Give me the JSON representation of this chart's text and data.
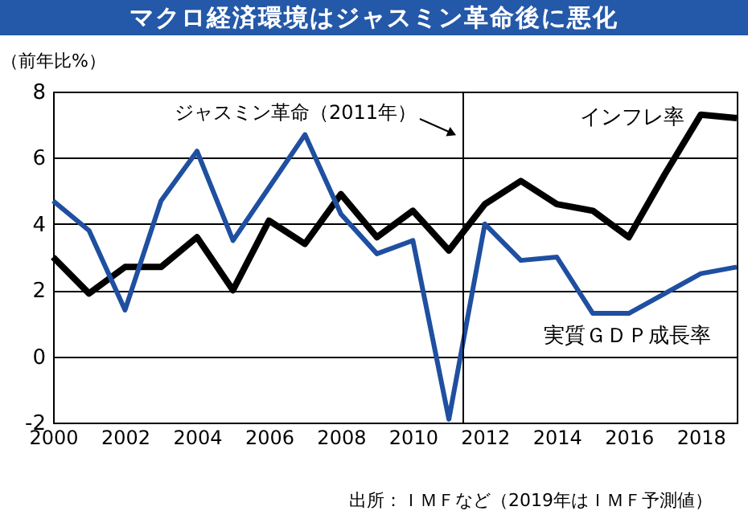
{
  "chart_data": {
    "type": "line",
    "title": "マクロ経済環境はジャスミン革命後に悪化",
    "ylabel": "（前年比%）",
    "x": [
      2000,
      2001,
      2002,
      2003,
      2004,
      2005,
      2006,
      2007,
      2008,
      2009,
      2010,
      2011,
      2012,
      2013,
      2014,
      2015,
      2016,
      2017,
      2018,
      2019
    ],
    "series": [
      {
        "name": "インフレ率",
        "color": "#000000",
        "values": [
          3.0,
          1.9,
          2.7,
          2.7,
          3.6,
          2.0,
          4.1,
          3.4,
          4.9,
          3.6,
          4.4,
          3.2,
          4.6,
          5.3,
          4.6,
          4.4,
          3.6,
          5.5,
          7.3,
          7.2
        ]
      },
      {
        "name": "実質ＧＤＰ成長率",
        "color": "#1f4fa0",
        "values": [
          4.7,
          3.8,
          1.4,
          4.7,
          6.2,
          3.5,
          5.1,
          6.7,
          4.3,
          3.1,
          3.5,
          -1.9,
          4.0,
          2.9,
          3.0,
          1.3,
          1.3,
          1.9,
          2.5,
          2.7
        ]
      }
    ],
    "xlim": [
      2000,
      2019
    ],
    "xticks": [
      2000,
      2002,
      2004,
      2006,
      2008,
      2010,
      2012,
      2014,
      2016,
      2018
    ],
    "ylim": [
      -2,
      8
    ],
    "yticks": [
      -2,
      0,
      2,
      4,
      6,
      8
    ],
    "grid": "y",
    "ref_lines": [
      {
        "axis": "x",
        "value": 2011.4,
        "label": "ジャスミン革命（2011年）",
        "color": "#000000"
      }
    ],
    "annotations": [
      "出所：ＩＭＦなど（2019年はＩＭＦ予測値）"
    ]
  }
}
